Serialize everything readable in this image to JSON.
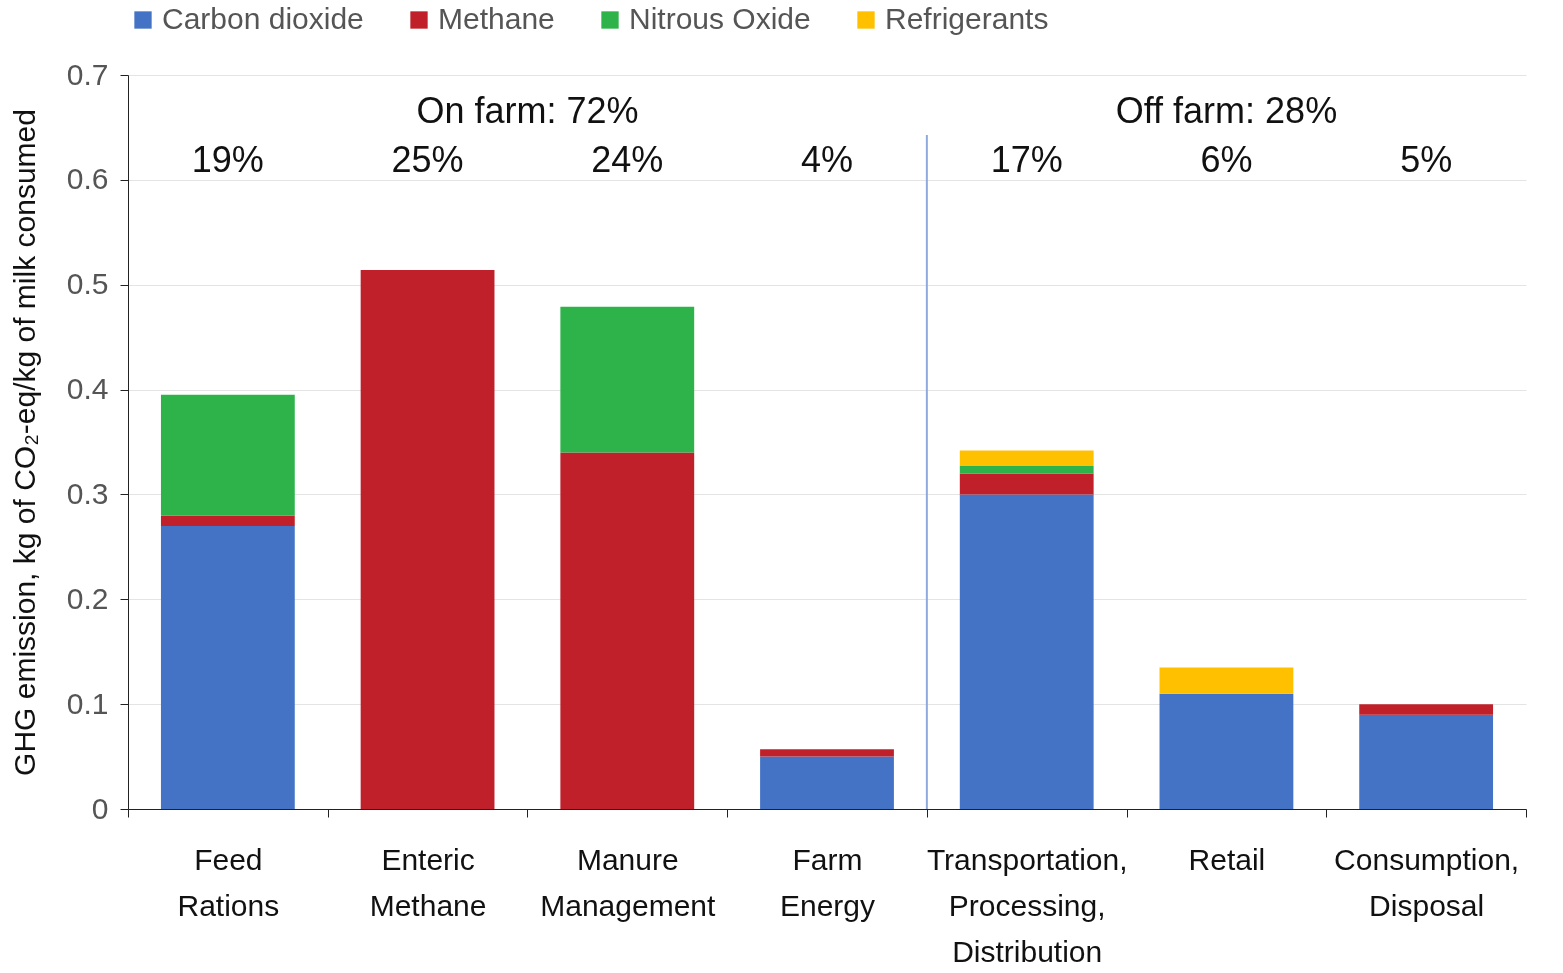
{
  "chart_data": {
    "type": "bar",
    "stacked": true,
    "ylabel": "GHG emission, kg of CO₂-eq/kg of milk consumed",
    "categories": [
      "Feed Rations",
      "Enteric Methane",
      "Manure Management",
      "Farm Energy",
      "Transportation, Processing, Distribution",
      "Retail",
      "Consumption, Disposal"
    ],
    "series": [
      {
        "name": "Carbon dioxide",
        "color": "#4472c4",
        "values": [
          0.27,
          0,
          0,
          0.05,
          0.3,
          0.11,
          0.09
        ]
      },
      {
        "name": "Methane",
        "color": "#c0202a",
        "values": [
          0.01,
          0.514,
          0.34,
          0.007,
          0.02,
          0,
          0.01
        ]
      },
      {
        "name": "Nitrous Oxide",
        "color": "#2db34a",
        "values": [
          0.115,
          0,
          0.139,
          0,
          0.007,
          0,
          0
        ]
      },
      {
        "name": "Refrigerants",
        "color": "#ffc000",
        "values": [
          0,
          0,
          0,
          0,
          0.015,
          0.025,
          0
        ]
      }
    ],
    "ylim": [
      0,
      0.7
    ],
    "yticks": [
      0,
      0.1,
      0.2,
      0.3,
      0.4,
      0.5,
      0.6,
      0.7
    ],
    "grid": "y",
    "legend": "top",
    "ref_lines": [
      {
        "axis": "x",
        "value": "Transportation, Processing, Distribution",
        "color": "#8faadc"
      }
    ],
    "annotations": [
      "On farm: 72%",
      "Off farm: 28%",
      "19%",
      "25%",
      "24%",
      "4%",
      "17%",
      "6%",
      "5%"
    ]
  }
}
